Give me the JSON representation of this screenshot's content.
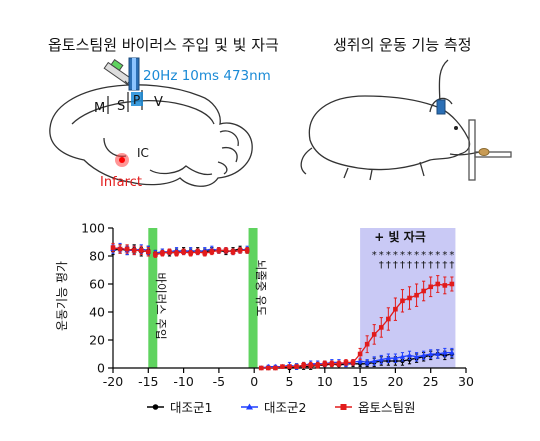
{
  "panels": {
    "left_title": "옵토스팀원 바이러스 주입 및 빛 자극",
    "right_title": "생쥐의 운동 기능 측정"
  },
  "brain_diagram": {
    "laser_label": "20Hz 10ms 473nm",
    "regions": [
      "M",
      "S",
      "P",
      "V"
    ],
    "ic_label": "IC",
    "infarct_label": "Infarct"
  },
  "chart_data": {
    "type": "line",
    "title": "",
    "xlabel": "",
    "ylabel": "운동기능 평가",
    "xlim": [
      -20,
      30
    ],
    "ylim": [
      0,
      100
    ],
    "xticks": [
      -20,
      -15,
      -10,
      -5,
      0,
      5,
      10,
      15,
      20,
      25,
      30
    ],
    "yticks": [
      0,
      20,
      40,
      60,
      80,
      100
    ],
    "grid": false,
    "legend_position": "bottom",
    "bands": [
      {
        "label": "바이러스 주입",
        "x_from": -15,
        "x_to": -14,
        "color": "#5fd35f"
      },
      {
        "label": "뇌졸중 유도",
        "x_from": -0.8,
        "x_to": 0.4,
        "color": "#5fd35f"
      }
    ],
    "stim_region": {
      "label": "+ 빛 자극",
      "x_from": 15,
      "x_to": 28.5,
      "color": "#c9c9f5"
    },
    "significance_rows": [
      {
        "symbol": "*",
        "x": [
          17,
          18,
          19,
          20,
          21,
          22,
          23,
          24,
          25,
          26,
          27,
          28
        ]
      },
      {
        "symbol": "†",
        "x": [
          18,
          19,
          20,
          21,
          22,
          23,
          24,
          25,
          26,
          27,
          28
        ]
      }
    ],
    "series": [
      {
        "name": "대조군1",
        "color": "#000000",
        "marker": "circle",
        "segments": [
          {
            "x": [
              -20,
              -19,
              -18,
              -17,
              -16,
              -15
            ],
            "y": [
              84,
              85,
              84,
              85,
              83,
              84
            ],
            "err": [
              3,
              3,
              3,
              3,
              3,
              3
            ]
          },
          {
            "x": [
              -14,
              -13,
              -12,
              -11,
              -10,
              -9,
              -8,
              -7,
              -6,
              -5,
              -4,
              -3,
              -2,
              -1
            ],
            "y": [
              82,
              83,
              82,
              83,
              84,
              83,
              84,
              83,
              84,
              84,
              83,
              84,
              85,
              84
            ],
            "err": [
              2,
              2,
              2,
              2,
              2,
              2,
              2,
              2,
              2,
              2,
              2,
              2,
              2,
              2
            ]
          },
          {
            "x": [
              1,
              2,
              3,
              4,
              5,
              6,
              7,
              8,
              9,
              10,
              11,
              12,
              13,
              14,
              15,
              16,
              17,
              18,
              19,
              20,
              21,
              22,
              23,
              24,
              25,
              26,
              27,
              28
            ],
            "y": [
              0,
              0,
              0,
              1,
              0,
              1,
              1,
              1,
              2,
              2,
              3,
              2,
              3,
              3,
              3,
              3,
              4,
              5,
              5,
              5,
              5,
              6,
              7,
              8,
              9,
              10,
              9,
              10
            ],
            "err": [
              1,
              1,
              1,
              1,
              1,
              2,
              2,
              2,
              2,
              2,
              2,
              2,
              2,
              2,
              2,
              2,
              3,
              3,
              3,
              3,
              3,
              3,
              3,
              3,
              3,
              3,
              3,
              3
            ]
          }
        ]
      },
      {
        "name": "대조군2",
        "color": "#1f3fff",
        "marker": "triangle",
        "segments": [
          {
            "x": [
              -20,
              -19,
              -18,
              -17,
              -16,
              -15
            ],
            "y": [
              85,
              86,
              84,
              84,
              85,
              84
            ],
            "err": [
              3,
              3,
              3,
              3,
              3,
              3
            ]
          },
          {
            "x": [
              -14,
              -13,
              -12,
              -11,
              -10,
              -9,
              -8,
              -7,
              -6,
              -5,
              -4,
              -3,
              -2,
              -1
            ],
            "y": [
              82,
              83,
              83,
              84,
              83,
              84,
              83,
              84,
              85,
              84,
              84,
              83,
              84,
              85
            ],
            "err": [
              2,
              2,
              2,
              2,
              2,
              2,
              2,
              2,
              2,
              2,
              2,
              2,
              2,
              2
            ]
          },
          {
            "x": [
              1,
              2,
              3,
              4,
              5,
              6,
              7,
              8,
              9,
              10,
              11,
              12,
              13,
              14,
              15,
              16,
              17,
              18,
              19,
              20,
              21,
              22,
              23,
              24,
              25,
              26,
              27,
              28
            ],
            "y": [
              0,
              1,
              1,
              1,
              2,
              1,
              2,
              3,
              3,
              3,
              4,
              4,
              3,
              4,
              5,
              4,
              5,
              6,
              7,
              7,
              8,
              9,
              8,
              9,
              10,
              10,
              11,
              11
            ],
            "err": [
              1,
              1,
              1,
              1,
              2,
              2,
              2,
              2,
              2,
              2,
              2,
              2,
              2,
              2,
              2,
              2,
              3,
              3,
              3,
              3,
              3,
              3,
              3,
              3,
              3,
              3,
              3,
              3
            ]
          }
        ]
      },
      {
        "name": "옵토스팀원",
        "color": "#e21b1b",
        "marker": "square",
        "segments": [
          {
            "x": [
              -20,
              -19,
              -18,
              -17,
              -16,
              -15
            ],
            "y": [
              86,
              85,
              85,
              84,
              84,
              83
            ],
            "err": [
              3,
              3,
              3,
              3,
              3,
              3
            ]
          },
          {
            "x": [
              -14,
              -13,
              -12,
              -11,
              -10,
              -9,
              -8,
              -7,
              -6,
              -5,
              -4,
              -3,
              -2,
              -1
            ],
            "y": [
              81,
              82,
              83,
              82,
              83,
              82,
              83,
              82,
              83,
              84,
              84,
              83,
              84,
              84
            ],
            "err": [
              2,
              2,
              2,
              2,
              2,
              2,
              2,
              2,
              2,
              2,
              2,
              2,
              2,
              2
            ]
          },
          {
            "x": [
              1,
              2,
              3,
              4,
              5,
              6,
              7,
              8,
              9,
              10,
              11,
              12,
              13,
              14,
              15,
              16,
              17,
              18,
              19,
              20,
              21,
              22,
              23,
              24,
              25,
              26,
              27,
              28
            ],
            "y": [
              0,
              0,
              0,
              1,
              1,
              1,
              2,
              2,
              2,
              3,
              3,
              3,
              4,
              4,
              10,
              17,
              24,
              29,
              35,
              42,
              48,
              50,
              52,
              55,
              58,
              60,
              59,
              60
            ],
            "err": [
              1,
              1,
              1,
              1,
              1,
              1,
              2,
              2,
              2,
              2,
              2,
              2,
              2,
              2,
              4,
              6,
              7,
              7,
              8,
              8,
              8,
              8,
              8,
              7,
              7,
              6,
              6,
              5
            ]
          }
        ]
      }
    ]
  }
}
